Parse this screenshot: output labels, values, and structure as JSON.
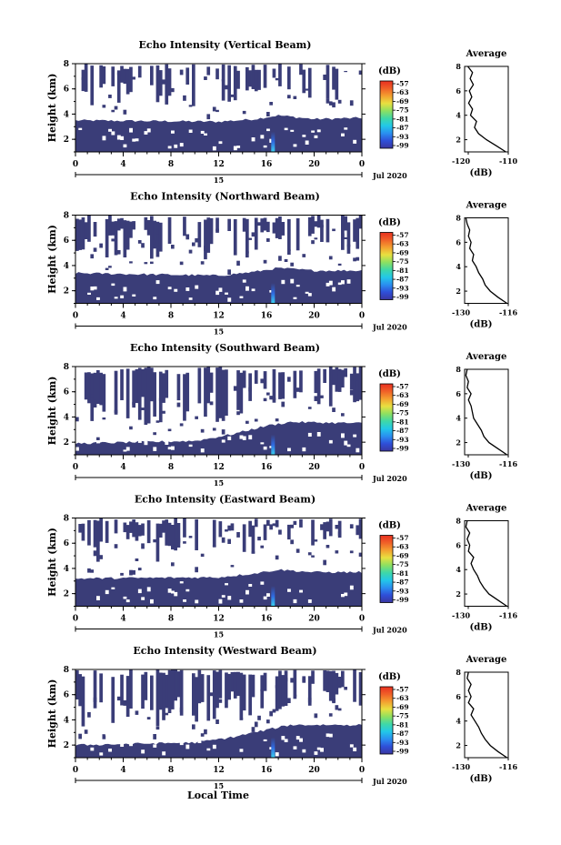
{
  "figure": {
    "xlabel": "Local Time",
    "day_label": "15",
    "date_label": "Jul 2020",
    "colorbar_unit": "(dB)",
    "colorbar_ticks": [
      "-57",
      "-63",
      "-69",
      "-75",
      "-81",
      "-87",
      "-93",
      "-99"
    ],
    "avg_title": "Average",
    "avg_unit": "(dB)",
    "colors": {
      "echo_fill": "#3a3d78",
      "colorbar": [
        "#3a36a0",
        "#2f4fd8",
        "#2a8ff0",
        "#22c8e8",
        "#3ed8a8",
        "#8ee060",
        "#e8e040",
        "#f4a030",
        "#f06028",
        "#e83020"
      ]
    }
  },
  "chart_data": [
    {
      "type": "heatmap",
      "title": "Echo Intensity (Vertical Beam)",
      "xlabel": "Local Time",
      "ylabel": "Height (km)",
      "x_ticks": [
        "0",
        "4",
        "8",
        "12",
        "16",
        "20",
        "0"
      ],
      "y_ticks": [
        "2",
        "4",
        "6",
        "8"
      ],
      "xlim": [
        0,
        24
      ],
      "ylim": [
        1,
        8
      ],
      "colorbar": {
        "unit": "(dB)",
        "ticks": [
          -57,
          -63,
          -69,
          -75,
          -81,
          -87,
          -93,
          -99
        ]
      },
      "echo_top_km": [
        [
          0,
          3.5
        ],
        [
          12,
          3.4
        ],
        [
          15,
          3.6
        ],
        [
          17,
          3.9
        ],
        [
          20,
          3.6
        ],
        [
          24,
          3.7
        ]
      ],
      "average_profile": {
        "title": "Average",
        "xlabel": "(dB)",
        "x_ticks": [
          "-120",
          "-110"
        ],
        "xlim": [
          -121,
          -110
        ],
        "y_ticks": [
          "2",
          "4",
          "6",
          "8"
        ],
        "ylim": [
          1,
          8
        ],
        "points": [
          [
            -110.6,
            1.0
          ],
          [
            -113,
            1.5
          ],
          [
            -115.5,
            2.0
          ],
          [
            -117.5,
            2.5
          ],
          [
            -118.5,
            3.0
          ],
          [
            -118,
            3.5
          ],
          [
            -119.5,
            4.0
          ],
          [
            -119,
            4.5
          ],
          [
            -120,
            5.0
          ],
          [
            -119.2,
            5.5
          ],
          [
            -119.8,
            6.0
          ],
          [
            -118.8,
            6.5
          ],
          [
            -119.6,
            7.0
          ],
          [
            -119,
            7.5
          ],
          [
            -120.2,
            8.0
          ]
        ]
      }
    },
    {
      "type": "heatmap",
      "title": "Echo Intensity (Northward Beam)",
      "xlabel": "Local Time",
      "ylabel": "Height (km)",
      "x_ticks": [
        "0",
        "4",
        "8",
        "12",
        "16",
        "20",
        "0"
      ],
      "y_ticks": [
        "2",
        "4",
        "6",
        "8"
      ],
      "xlim": [
        0,
        24
      ],
      "ylim": [
        1,
        8
      ],
      "colorbar": {
        "unit": "(dB)",
        "ticks": [
          -57,
          -63,
          -69,
          -75,
          -81,
          -87,
          -93,
          -99
        ]
      },
      "echo_top_km": [
        [
          0,
          3.4
        ],
        [
          12,
          3.2
        ],
        [
          15,
          3.5
        ],
        [
          17,
          3.8
        ],
        [
          20,
          3.6
        ],
        [
          24,
          3.6
        ]
      ],
      "average_profile": {
        "title": "Average",
        "xlabel": "(dB)",
        "x_ticks": [
          "-130",
          "-116"
        ],
        "xlim": [
          -131,
          -114
        ],
        "y_ticks": [
          "2",
          "4",
          "6",
          "8"
        ],
        "ylim": [
          1,
          8
        ],
        "points": [
          [
            -114.5,
            1.0
          ],
          [
            -118,
            1.5
          ],
          [
            -121,
            2.0
          ],
          [
            -123,
            2.5
          ],
          [
            -124,
            3.0
          ],
          [
            -125.5,
            3.5
          ],
          [
            -126.5,
            4.0
          ],
          [
            -128,
            4.5
          ],
          [
            -127.5,
            5.0
          ],
          [
            -129,
            5.5
          ],
          [
            -128.5,
            6.0
          ],
          [
            -129.5,
            6.5
          ],
          [
            -129,
            7.0
          ],
          [
            -130,
            7.5
          ],
          [
            -130.5,
            8.0
          ]
        ]
      }
    },
    {
      "type": "heatmap",
      "title": "Echo Intensity (Southward Beam)",
      "xlabel": "Local Time",
      "ylabel": "Height (km)",
      "x_ticks": [
        "0",
        "4",
        "8",
        "12",
        "16",
        "20",
        "0"
      ],
      "y_ticks": [
        "2",
        "4",
        "6",
        "8"
      ],
      "xlim": [
        0,
        24
      ],
      "ylim": [
        1,
        8
      ],
      "colorbar": {
        "unit": "(dB)",
        "ticks": [
          -57,
          -63,
          -69,
          -75,
          -81,
          -87,
          -93,
          -99
        ]
      },
      "echo_top_km": [
        [
          0,
          1.9
        ],
        [
          10,
          2.1
        ],
        [
          13,
          2.6
        ],
        [
          16,
          3.3
        ],
        [
          18,
          3.6
        ],
        [
          24,
          3.5
        ]
      ],
      "average_profile": {
        "title": "Average",
        "xlabel": "(dB)",
        "x_ticks": [
          "-130",
          "-116"
        ],
        "xlim": [
          -131,
          -114
        ],
        "y_ticks": [
          "2",
          "4",
          "6",
          "8"
        ],
        "ylim": [
          1,
          8
        ],
        "points": [
          [
            -114.5,
            1.0
          ],
          [
            -118,
            1.5
          ],
          [
            -121.5,
            2.0
          ],
          [
            -123.5,
            2.5
          ],
          [
            -124.5,
            3.0
          ],
          [
            -126,
            3.5
          ],
          [
            -127.5,
            4.0
          ],
          [
            -128,
            4.5
          ],
          [
            -128.5,
            5.0
          ],
          [
            -129.5,
            5.5
          ],
          [
            -128.5,
            6.0
          ],
          [
            -130,
            6.5
          ],
          [
            -129.5,
            7.0
          ],
          [
            -130.5,
            7.5
          ],
          [
            -130,
            8.0
          ]
        ]
      }
    },
    {
      "type": "heatmap",
      "title": "Echo Intensity (Eastward Beam)",
      "xlabel": "Local Time",
      "ylabel": "Height (km)",
      "x_ticks": [
        "0",
        "4",
        "8",
        "12",
        "16",
        "20",
        "0"
      ],
      "y_ticks": [
        "2",
        "4",
        "6",
        "8"
      ],
      "xlim": [
        0,
        24
      ],
      "ylim": [
        1,
        8
      ],
      "colorbar": {
        "unit": "(dB)",
        "ticks": [
          -57,
          -63,
          -69,
          -75,
          -81,
          -87,
          -93,
          -99
        ]
      },
      "echo_top_km": [
        [
          0,
          3.2
        ],
        [
          12,
          3.3
        ],
        [
          15,
          3.6
        ],
        [
          17,
          3.9
        ],
        [
          20,
          3.7
        ],
        [
          24,
          3.7
        ]
      ],
      "average_profile": {
        "title": "Average",
        "xlabel": "(dB)",
        "x_ticks": [
          "-130",
          "-116"
        ],
        "xlim": [
          -131,
          -114
        ],
        "y_ticks": [
          "2",
          "4",
          "6",
          "8"
        ],
        "ylim": [
          1,
          8
        ],
        "points": [
          [
            -114.5,
            1.0
          ],
          [
            -118,
            1.5
          ],
          [
            -121.5,
            2.0
          ],
          [
            -123.5,
            2.5
          ],
          [
            -125,
            3.0
          ],
          [
            -126,
            3.5
          ],
          [
            -127.5,
            4.0
          ],
          [
            -128.5,
            4.5
          ],
          [
            -127.5,
            5.0
          ],
          [
            -129.5,
            5.5
          ],
          [
            -129,
            6.0
          ],
          [
            -130,
            6.5
          ],
          [
            -129,
            7.0
          ],
          [
            -130.5,
            7.5
          ],
          [
            -130,
            8.0
          ]
        ]
      }
    },
    {
      "type": "heatmap",
      "title": "Echo Intensity (Westward Beam)",
      "xlabel": "Local Time",
      "ylabel": "Height (km)",
      "x_ticks": [
        "0",
        "4",
        "8",
        "12",
        "16",
        "20",
        "0"
      ],
      "y_ticks": [
        "2",
        "4",
        "6",
        "8"
      ],
      "xlim": [
        0,
        24
      ],
      "ylim": [
        1,
        8
      ],
      "colorbar": {
        "unit": "(dB)",
        "ticks": [
          -57,
          -63,
          -69,
          -75,
          -81,
          -87,
          -93,
          -99
        ]
      },
      "echo_top_km": [
        [
          0,
          2.0
        ],
        [
          10,
          2.2
        ],
        [
          13,
          2.6
        ],
        [
          16,
          3.2
        ],
        [
          18,
          3.6
        ],
        [
          24,
          3.6
        ]
      ],
      "average_profile": {
        "title": "Average",
        "xlabel": "(dB)",
        "x_ticks": [
          "-130",
          "-116"
        ],
        "xlim": [
          -131,
          -114
        ],
        "y_ticks": [
          "2",
          "4",
          "6",
          "8"
        ],
        "ylim": [
          1,
          8
        ],
        "points": [
          [
            -114.5,
            1.0
          ],
          [
            -118,
            1.5
          ],
          [
            -121,
            2.0
          ],
          [
            -123,
            2.5
          ],
          [
            -124.5,
            3.0
          ],
          [
            -125.5,
            3.5
          ],
          [
            -127,
            4.0
          ],
          [
            -128.5,
            4.5
          ],
          [
            -127.5,
            5.0
          ],
          [
            -129.5,
            5.5
          ],
          [
            -128.5,
            6.0
          ],
          [
            -129.5,
            6.5
          ],
          [
            -128.5,
            7.0
          ],
          [
            -130,
            7.5
          ],
          [
            -129.5,
            8.0
          ]
        ]
      }
    }
  ]
}
